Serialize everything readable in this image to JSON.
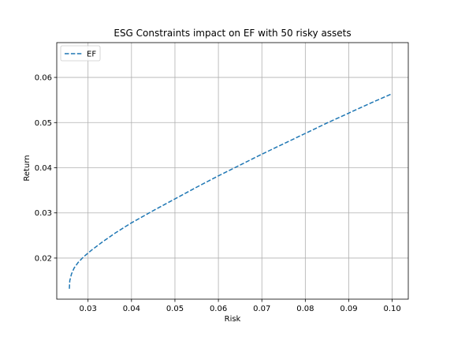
{
  "chart_data": {
    "type": "line",
    "title": "ESG Constraints impact on EF with 50 risky assets",
    "xlabel": "Risk",
    "ylabel": "Return",
    "xlim": [
      0.0228,
      0.1037
    ],
    "ylim": [
      0.0109,
      0.0677
    ],
    "xticks": [
      0.03,
      0.04,
      0.05,
      0.06,
      0.07,
      0.08,
      0.09,
      0.1
    ],
    "xtick_labels": [
      "0.03",
      "0.04",
      "0.05",
      "0.06",
      "0.07",
      "0.08",
      "0.09",
      "0.10"
    ],
    "yticks": [
      0.02,
      0.03,
      0.04,
      0.05,
      0.06
    ],
    "ytick_labels": [
      "0.02",
      "0.03",
      "0.04",
      "0.05",
      "0.06"
    ],
    "grid": true,
    "legend_position": "upper-left",
    "series": [
      {
        "name": "EF",
        "color": "#1f77b4",
        "style": "dashed",
        "x": [
          0.0257,
          0.0258,
          0.0262,
          0.0268,
          0.0277,
          0.029,
          0.031,
          0.0335,
          0.0365,
          0.04,
          0.045,
          0.05,
          0.055,
          0.06,
          0.065,
          0.07,
          0.075,
          0.08,
          0.085,
          0.09,
          0.095,
          0.1
        ],
        "y": [
          0.0132,
          0.015,
          0.0165,
          0.0178,
          0.019,
          0.0203,
          0.0219,
          0.0237,
          0.0257,
          0.0278,
          0.0305,
          0.0331,
          0.0357,
          0.0382,
          0.0406,
          0.043,
          0.0453,
          0.0476,
          0.0499,
          0.0521,
          0.0543,
          0.0564
        ]
      }
    ]
  }
}
